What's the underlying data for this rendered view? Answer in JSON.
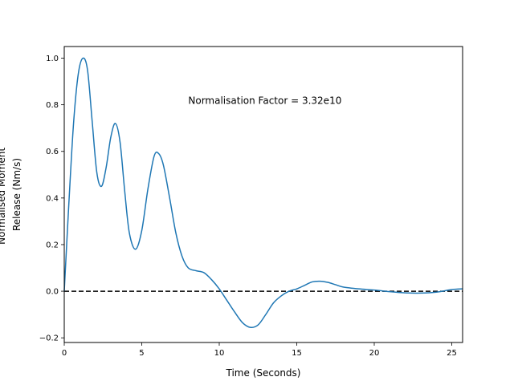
{
  "chart_data": {
    "type": "line",
    "title": "",
    "xlabel": "Time (Seconds)",
    "ylabel_lines": [
      "Normalised Moment",
      "Release (Nm/s)"
    ],
    "xlim": [
      0,
      25.7
    ],
    "ylim": [
      -0.22,
      1.05
    ],
    "xticks": [
      0,
      5,
      10,
      15,
      20,
      25
    ],
    "xtick_labels": [
      "0",
      "5",
      "10",
      "15",
      "20",
      "25"
    ],
    "yticks": [
      -0.2,
      0.0,
      0.2,
      0.4,
      0.6,
      0.8,
      1.0
    ],
    "ytick_labels": [
      "−0.2",
      "0.0",
      "0.2",
      "0.4",
      "0.6",
      "0.8",
      "1.0"
    ],
    "grid": false,
    "annotation": {
      "text": "Normalisation Factor = 3.32e10",
      "x": 8.0,
      "y": 0.8
    },
    "reference_line": {
      "y": 0.0,
      "style": "dashed",
      "color": "#000000"
    },
    "series": [
      {
        "color": "#1f77b4",
        "x": [
          0,
          0.3,
          0.6,
          0.9,
          1.2,
          1.5,
          1.8,
          2.1,
          2.4,
          2.7,
          3.0,
          3.3,
          3.6,
          3.9,
          4.2,
          4.6,
          5.0,
          5.4,
          5.8,
          6.1,
          6.4,
          6.8,
          7.2,
          7.6,
          8.0,
          8.5,
          9.0,
          9.5,
          10.0,
          10.5,
          11.0,
          11.5,
          12.0,
          12.5,
          13.0,
          13.5,
          14.0,
          14.5,
          15.0,
          15.5,
          16.0,
          16.5,
          17.0,
          17.5,
          18.0,
          19.0,
          20.0,
          21.0,
          22.0,
          23.0,
          24.0,
          25.0,
          25.7
        ],
        "y": [
          0.0,
          0.38,
          0.72,
          0.93,
          1.0,
          0.95,
          0.73,
          0.51,
          0.45,
          0.53,
          0.66,
          0.72,
          0.64,
          0.43,
          0.25,
          0.18,
          0.26,
          0.44,
          0.58,
          0.59,
          0.54,
          0.4,
          0.25,
          0.15,
          0.1,
          0.088,
          0.08,
          0.05,
          0.01,
          -0.04,
          -0.09,
          -0.135,
          -0.155,
          -0.145,
          -0.1,
          -0.05,
          -0.02,
          0.0,
          0.01,
          0.025,
          0.04,
          0.043,
          0.038,
          0.028,
          0.018,
          0.01,
          0.005,
          -0.002,
          -0.007,
          -0.008,
          -0.004,
          0.007,
          0.01
        ]
      }
    ]
  }
}
